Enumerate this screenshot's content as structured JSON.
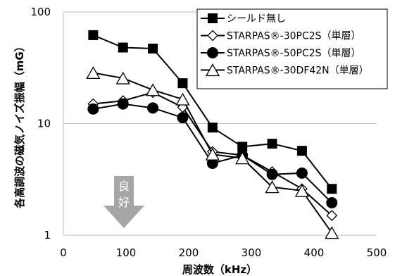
{
  "chart_data": {
    "type": "line",
    "xlabel": "周波数（kHz）",
    "ylabel": "各高調波の磁気ノイズ振幅（mG）",
    "xlim": [
      0,
      500
    ],
    "ylim": [
      1,
      100
    ],
    "yscale": "log",
    "x_ticks": [
      "0",
      "100",
      "200",
      "300",
      "400",
      "500"
    ],
    "y_ticks": [
      "1",
      "10",
      "100"
    ],
    "grid": "horizontal",
    "legend": "top-right",
    "annotation": {
      "label_top": "良",
      "label_bottom": "好",
      "color": "#a6a6a6"
    },
    "series": [
      {
        "name": "シールド無し",
        "marker": "square-filled",
        "x": [
          47.6,
          95.2,
          142.8,
          190.4,
          238,
          285.6,
          333.2,
          380.8,
          428.4
        ],
        "y": [
          62,
          48,
          47,
          23,
          9.2,
          6.2,
          6.6,
          5.7,
          2.6
        ]
      },
      {
        "name": "STARPAS®-30PC2S（単層）",
        "marker": "diamond-open",
        "x": [
          47.6,
          95.2,
          142.8,
          190.4,
          238,
          285.6,
          333.2,
          380.8,
          428.4
        ],
        "y": [
          15,
          16,
          19,
          14,
          5.6,
          5.2,
          3.7,
          2.6,
          1.5
        ]
      },
      {
        "name": "STARPAS®-50PC2S（単層）",
        "marker": "circle-filled",
        "x": [
          47.6,
          95.2,
          142.8,
          190.4,
          238,
          285.6,
          333.2,
          380.8,
          428.4
        ],
        "y": [
          13.5,
          15,
          13.8,
          11.3,
          4.4,
          5.2,
          3.5,
          3.6,
          1.95
        ]
      },
      {
        "name": "STARPAS®-30DF42N（単層）",
        "marker": "triangle-open",
        "x": [
          47.6,
          95.2,
          142.8,
          190.4,
          238,
          285.6,
          333.2,
          380.8,
          428.4
        ],
        "y": [
          28.5,
          25.5,
          20,
          16.5,
          5.3,
          4.9,
          2.7,
          2.5,
          1.05
        ]
      }
    ]
  }
}
